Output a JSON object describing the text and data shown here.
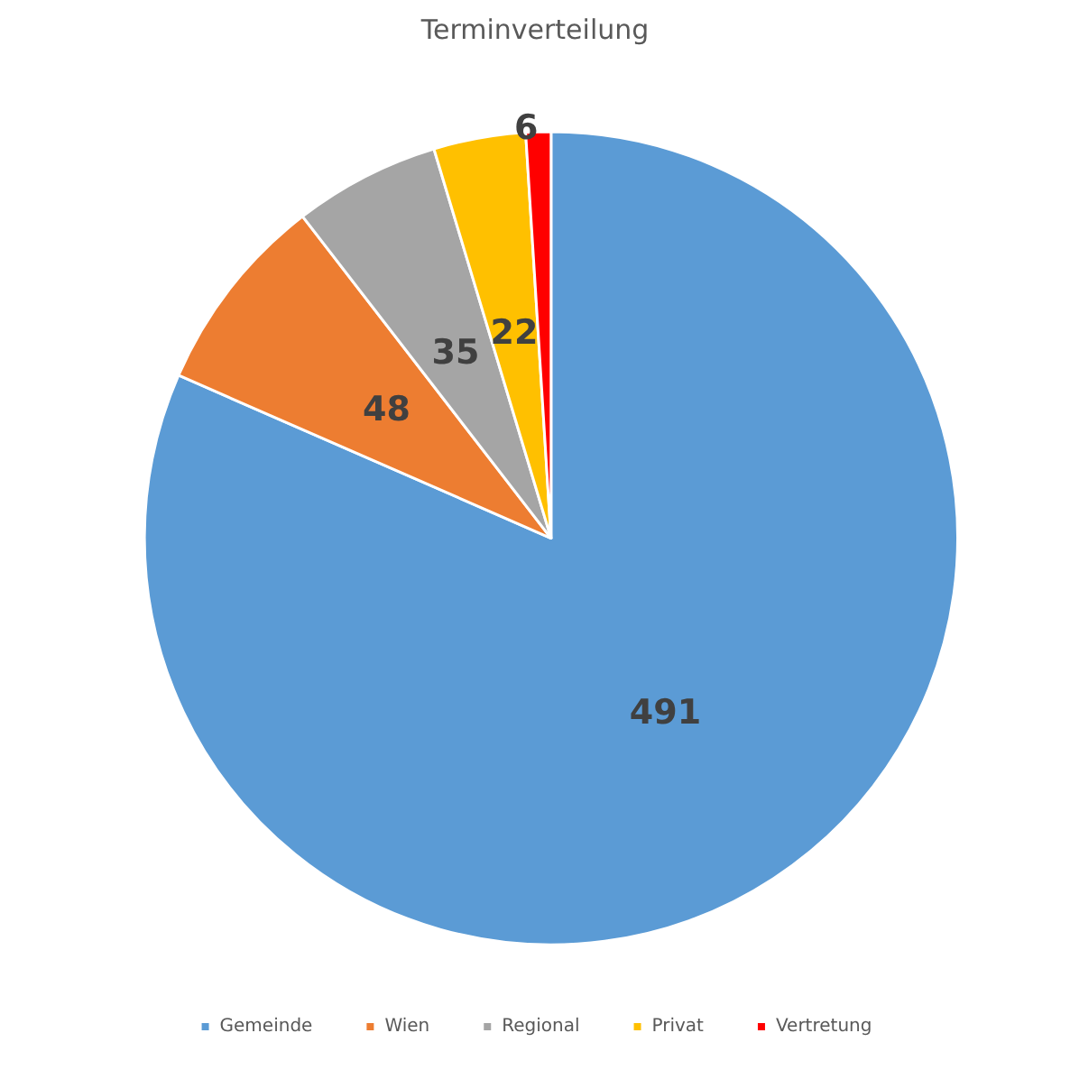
{
  "chart_data": {
    "type": "pie",
    "title": "Terminverteilung",
    "categories": [
      "Gemeinde",
      "Wien",
      "Regional",
      "Privat",
      "Vertretung"
    ],
    "values": [
      491,
      48,
      35,
      22,
      6
    ],
    "colors": [
      "#5b9bd5",
      "#ed7d31",
      "#a5a5a5",
      "#ffc000",
      "#ff0000"
    ],
    "data_labels": true,
    "legend": "bottom"
  }
}
